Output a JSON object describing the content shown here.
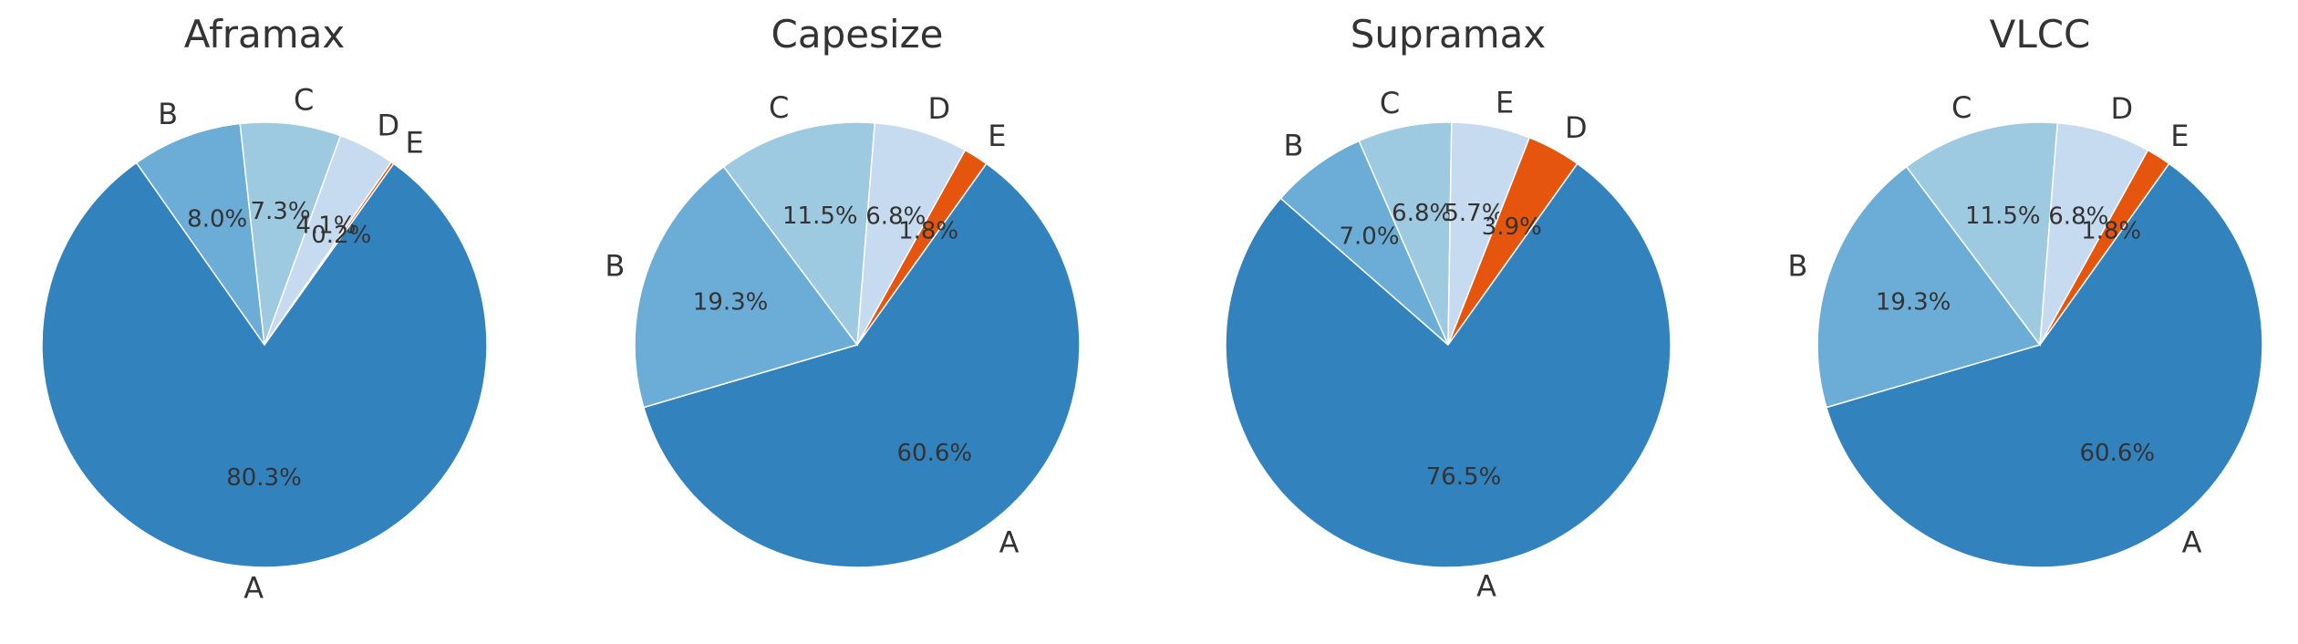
{
  "chart_data": [
    {
      "type": "pie",
      "title": "Aframax",
      "slices": [
        {
          "label": "A",
          "value": 80.3,
          "pct": "80.3%",
          "color": "#3282be"
        },
        {
          "label": "B",
          "value": 8.0,
          "pct": "8.0%",
          "color": "#6badd6"
        },
        {
          "label": "C",
          "value": 7.3,
          "pct": "7.3%",
          "color": "#9ecae1"
        },
        {
          "label": "D",
          "value": 4.1,
          "pct": "4.1%",
          "color": "#c6dbef"
        },
        {
          "label": "E",
          "value": 0.2,
          "pct": "0.2%",
          "color": "#e6550d"
        }
      ]
    },
    {
      "type": "pie",
      "title": "Capesize",
      "slices": [
        {
          "label": "A",
          "value": 60.6,
          "pct": "60.6%",
          "color": "#3282be"
        },
        {
          "label": "B",
          "value": 19.3,
          "pct": "19.3%",
          "color": "#6badd6"
        },
        {
          "label": "C",
          "value": 11.5,
          "pct": "11.5%",
          "color": "#9ecae1"
        },
        {
          "label": "D",
          "value": 6.8,
          "pct": "6.8%",
          "color": "#c6dbef"
        },
        {
          "label": "E",
          "value": 1.8,
          "pct": "1.8%",
          "color": "#e6550d"
        }
      ]
    },
    {
      "type": "pie",
      "title": "Supramax",
      "slices": [
        {
          "label": "A",
          "value": 76.5,
          "pct": "76.5%",
          "color": "#3282be"
        },
        {
          "label": "B",
          "value": 7.0,
          "pct": "7.0%",
          "color": "#6badd6"
        },
        {
          "label": "C",
          "value": 6.8,
          "pct": "6.8%",
          "color": "#9ecae1"
        },
        {
          "label": "E",
          "value": 5.7,
          "pct": "5.7%",
          "color": "#c6dbef"
        },
        {
          "label": "D",
          "value": 3.9,
          "pct": "3.9%",
          "color": "#e6550d"
        }
      ]
    },
    {
      "type": "pie",
      "title": "VLCC",
      "slices": [
        {
          "label": "A",
          "value": 60.6,
          "pct": "60.6%",
          "color": "#3282be"
        },
        {
          "label": "B",
          "value": 19.3,
          "pct": "19.3%",
          "color": "#6badd6"
        },
        {
          "label": "C",
          "value": 11.5,
          "pct": "11.5%",
          "color": "#9ecae1"
        },
        {
          "label": "D",
          "value": 6.8,
          "pct": "6.8%",
          "color": "#c6dbef"
        },
        {
          "label": "E",
          "value": 1.8,
          "pct": "1.8%",
          "color": "#e6550d"
        }
      ]
    }
  ]
}
